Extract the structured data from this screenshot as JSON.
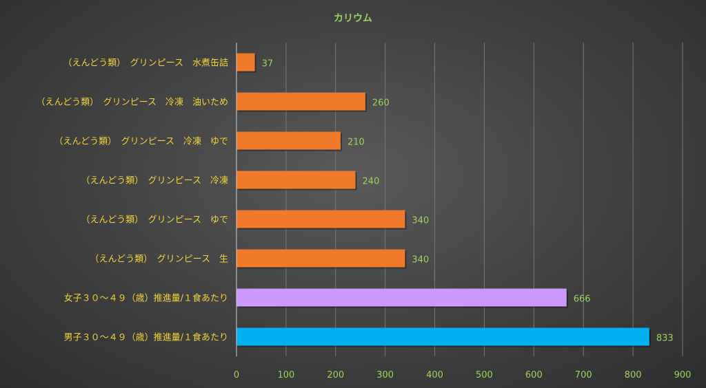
{
  "chart_data": {
    "type": "bar",
    "orientation": "horizontal",
    "title": "カリウム",
    "categories": [
      "（えんどう類）　グリンピース　水煮缶詰",
      "（えんどう類）　グリンピース　冷凍　油いため",
      "（えんどう類）　グリンピース　冷凍　ゆで",
      "（えんどう類）　グリンピース　冷凍",
      "（えんどう類）　グリンピース　ゆで",
      "（えんどう類）　グリンピース　生",
      "女子３０～４９（歳）推進量/１食あたり",
      "男子３０～４９（歳）推進量/１食あたり"
    ],
    "values": [
      37,
      260,
      210,
      240,
      340,
      340,
      666,
      833
    ],
    "value_labels": [
      "37",
      "260",
      "210",
      "240",
      "340",
      "340",
      "666",
      "833"
    ],
    "bar_colors": [
      "#f07a2c",
      "#f07a2c",
      "#f07a2c",
      "#f07a2c",
      "#f07a2c",
      "#f07a2c",
      "#cc99ff",
      "#00b0f0"
    ],
    "xlim": [
      0,
      900
    ],
    "x_ticks": [
      "0",
      "100",
      "200",
      "300",
      "400",
      "500",
      "600",
      "700",
      "800",
      "900"
    ],
    "grid": true,
    "legend": "none",
    "colors": {
      "title": "#9bd45c",
      "category_labels": "#f2d43a",
      "tick_labels": "#9bd45c",
      "value_labels": "#9bd45c",
      "gridlines": "#7a7a7a",
      "axis": "#d0d0d0"
    }
  }
}
